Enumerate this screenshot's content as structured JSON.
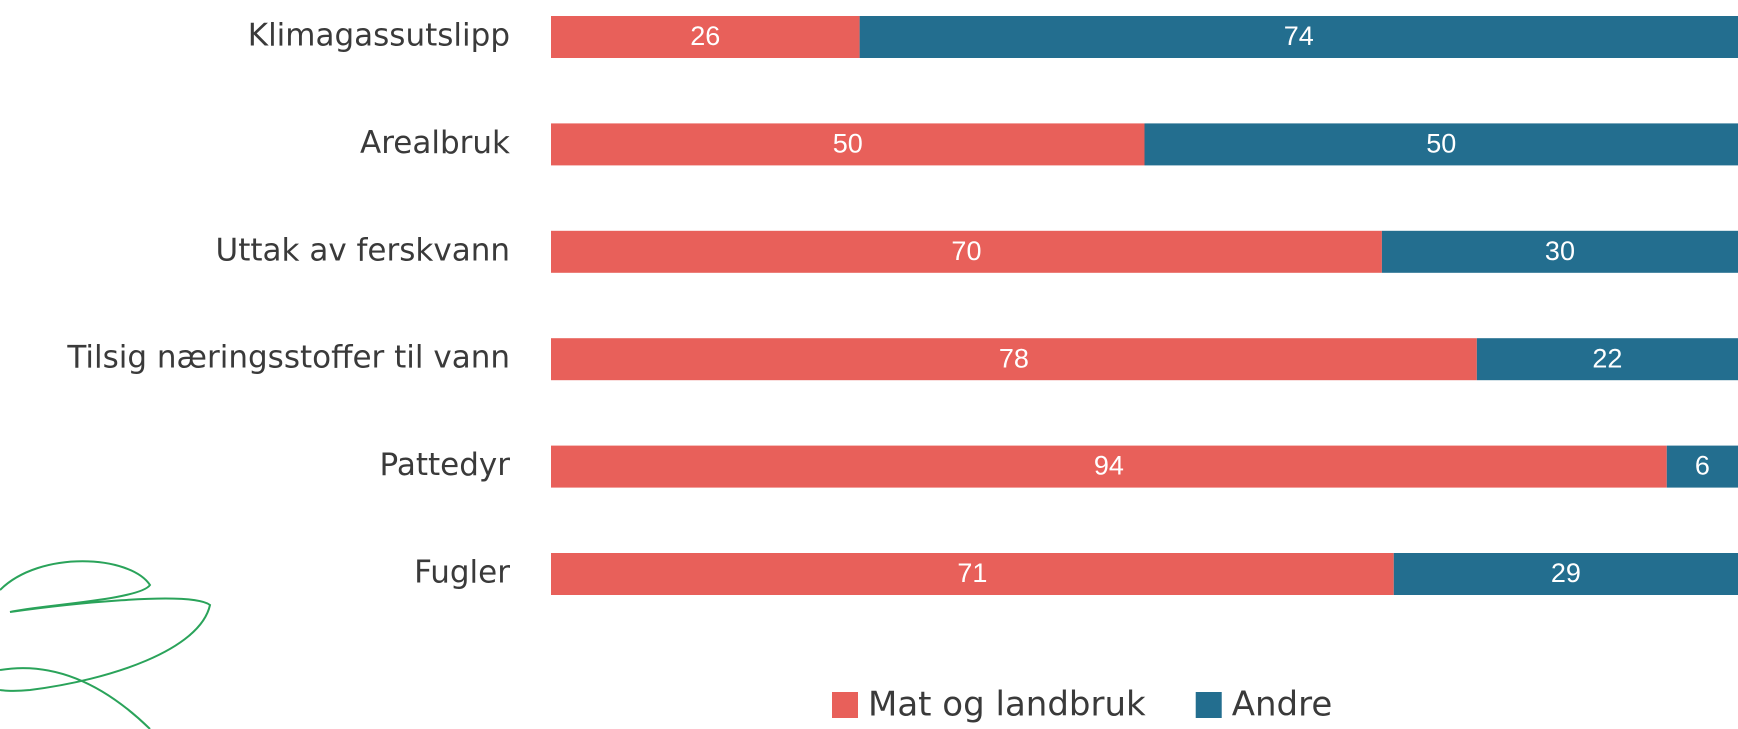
{
  "chart_data": {
    "type": "stacked-bar-horizontal",
    "categories": [
      "Klimagassutslipp",
      "Arealbruk",
      "Uttak av ferskvann",
      "Tilsig næringsstoffer til vann",
      "Pattedyr",
      "Fugler"
    ],
    "series": [
      {
        "name": "Mat og landbruk",
        "color": "#e8605a",
        "values": [
          26,
          50,
          70,
          78,
          94,
          71
        ]
      },
      {
        "name": "Andre",
        "color": "#236e8f",
        "values": [
          74,
          50,
          30,
          22,
          6,
          29
        ]
      }
    ]
  }
}
